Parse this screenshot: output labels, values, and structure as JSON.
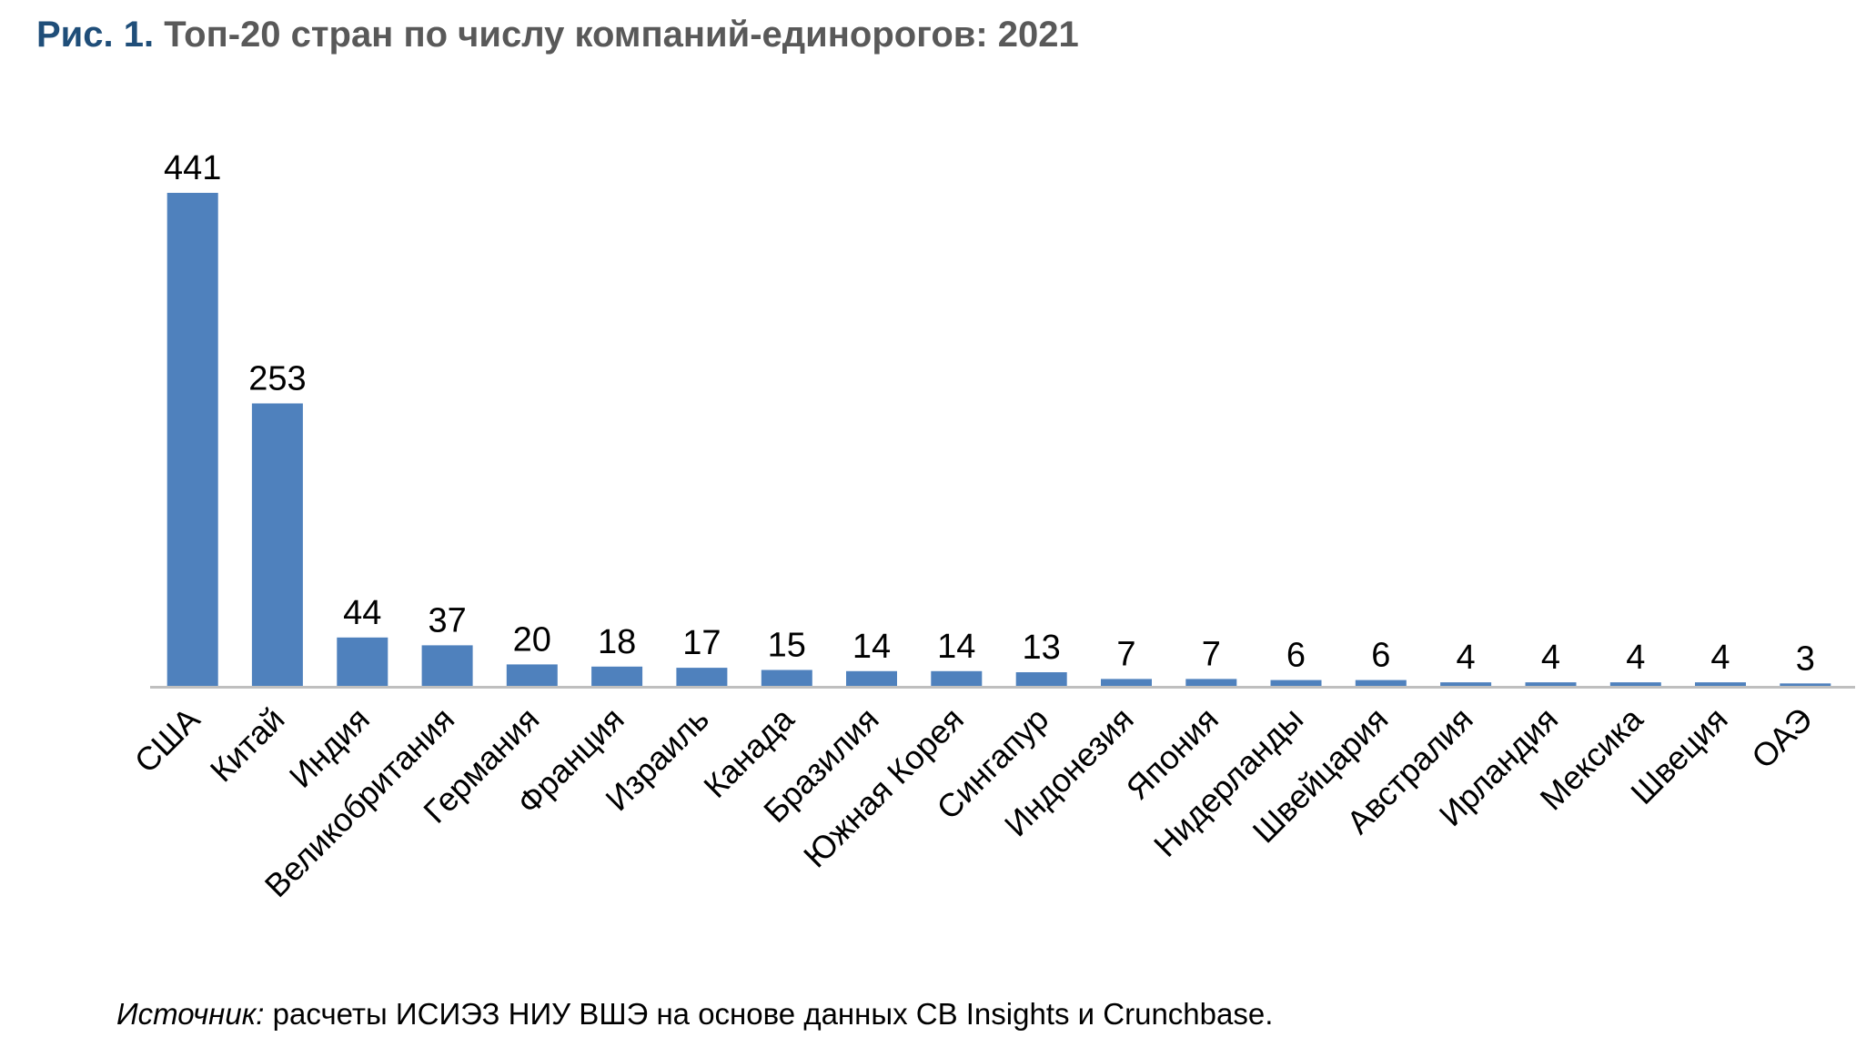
{
  "title": {
    "figure_number": "Рис. 1.",
    "text": "Топ-20 стран по числу компаний-единорогов: 2021"
  },
  "source": {
    "label": "Источник:",
    "text": "расчеты ИСИЭЗ НИУ ВШЭ на основе данных CB Insights и Crunchbase."
  },
  "colors": {
    "bar": "#4f81bd",
    "axis": "#bfbfbf",
    "title_number": "#1f4e79",
    "title_text": "#595959"
  },
  "chart_data": {
    "type": "bar",
    "title": "Топ-20 стран по числу компаний-единорогов: 2021",
    "xlabel": "",
    "ylabel": "",
    "ylim": [
      0,
      441
    ],
    "grid": false,
    "legend": "none",
    "data_labels": true,
    "categories": [
      "США",
      "Китай",
      "Индия",
      "Великобритания",
      "Германия",
      "Франция",
      "Израиль",
      "Канада",
      "Бразилия",
      "Южная Корея",
      "Сингапур",
      "Индонезия",
      "Япония",
      "Нидерланды",
      "Швейцария",
      "Австралия",
      "Ирландия",
      "Мексика",
      "Швеция",
      "ОАЭ"
    ],
    "values": [
      441,
      253,
      44,
      37,
      20,
      18,
      17,
      15,
      14,
      14,
      13,
      7,
      7,
      6,
      6,
      4,
      4,
      4,
      4,
      3
    ]
  }
}
